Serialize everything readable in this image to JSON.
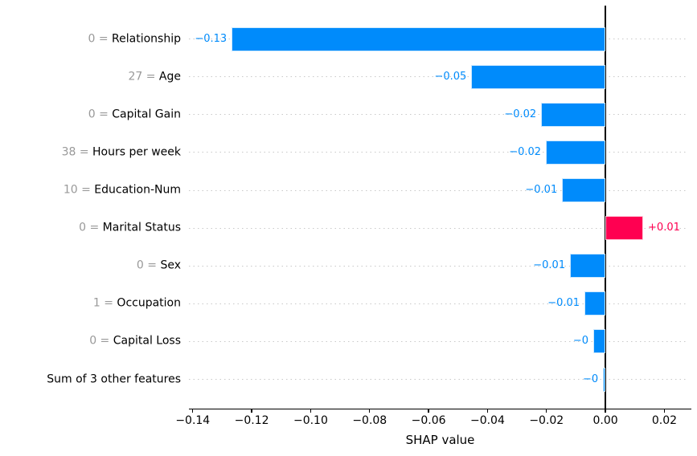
{
  "chart_data": {
    "type": "bar",
    "orientation": "horizontal",
    "title": "",
    "xlabel": "SHAP value",
    "ylabel": "",
    "xlim": [
      -0.1413,
      0.0292
    ],
    "grid": "dotted horizontal line per feature row, behind bars",
    "legend": "none",
    "zero_reference_line": 0,
    "x_ticks": [
      {
        "value": -0.14,
        "label": "−0.14"
      },
      {
        "value": -0.12,
        "label": "−0.12"
      },
      {
        "value": -0.1,
        "label": "−0.10"
      },
      {
        "value": -0.08,
        "label": "−0.08"
      },
      {
        "value": -0.06,
        "label": "−0.06"
      },
      {
        "value": -0.04,
        "label": "−0.04"
      },
      {
        "value": -0.02,
        "label": "−0.02"
      },
      {
        "value": 0.0,
        "label": "0.00"
      },
      {
        "value": 0.02,
        "label": "0.02"
      }
    ],
    "rows": [
      {
        "feature_value": "0",
        "feature_name": "Relationship",
        "value": -0.1268,
        "value_label": "−0.13"
      },
      {
        "feature_value": "27",
        "feature_name": "Age",
        "value": -0.0455,
        "value_label": "−0.05"
      },
      {
        "feature_value": "0",
        "feature_name": "Capital Gain",
        "value": -0.0218,
        "value_label": "−0.02"
      },
      {
        "feature_value": "38",
        "feature_name": "Hours per week",
        "value": -0.0202,
        "value_label": "−0.02"
      },
      {
        "feature_value": "10",
        "feature_name": "Education-Num",
        "value": -0.0147,
        "value_label": "−0.01"
      },
      {
        "feature_value": "0",
        "feature_name": "Marital Status",
        "value": 0.0128,
        "value_label": "+0.01"
      },
      {
        "feature_value": "0",
        "feature_name": "Sex",
        "value": -0.012,
        "value_label": "−0.01"
      },
      {
        "feature_value": "1",
        "feature_name": "Occupation",
        "value": -0.0071,
        "value_label": "−0.01"
      },
      {
        "feature_value": "0",
        "feature_name": "Capital Loss",
        "value": -0.0041,
        "value_label": "−0"
      },
      {
        "feature_value": null,
        "feature_name": "Sum of 3 other features",
        "value": -0.0008,
        "value_label": "−0"
      }
    ],
    "colors": {
      "negative_bar": "#008bfb",
      "positive_bar": "#ff0051",
      "feature_value_text": "#999999",
      "feature_name_text": "#000000",
      "gridline": "#c8c8c8",
      "zero_line": "#000000",
      "axis_text": "#000000"
    }
  }
}
